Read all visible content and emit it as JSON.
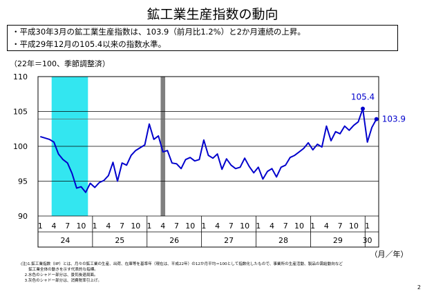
{
  "page": {
    "title": "鉱工業生産指数の動向",
    "bullets": [
      "・平成30年3月の鉱工業生産指数は、103.9（前月比1.2%）と2か月連続の上昇。",
      "・平成29年12月の105.4以来の指数水準。"
    ],
    "unit_note": "（22年＝100、季節調整済）",
    "notes": [
      "(注)1.鉱工業指数（IIP）とは、月々の鉱工業の生産、出荷、在庫等を基準年（現在は、平成22年）の12か月平均＝100として指数化したもので、事業所の生産活動、製品の需給動向など",
      "　　鉱工業全体の動きを示す代表的な指標。",
      "　2.水色のシャドー部分は、景気後退局面。",
      "　3.灰色のシャドー部分は、消費税率引上げ。"
    ],
    "page_number": "2"
  },
  "chart_data": {
    "type": "line",
    "title": "",
    "xlabel": "（月／年）",
    "ylabel": "",
    "ylim": [
      90,
      110
    ],
    "yticks": [
      90,
      95,
      100,
      105,
      110
    ],
    "month_ticks": [
      1,
      4,
      7,
      10
    ],
    "years": [
      "24",
      "25",
      "26",
      "27",
      "28",
      "29",
      "30"
    ],
    "start": "2012-01",
    "series": [
      {
        "name": "",
        "color": "#0000cc",
        "values": [
          101.4,
          101.2,
          101.0,
          100.6,
          98.9,
          98.1,
          97.6,
          96.1,
          94.0,
          94.2,
          93.4,
          94.7,
          94.1,
          94.8,
          95.1,
          95.8,
          97.7,
          95.0,
          97.6,
          97.3,
          98.7,
          99.4,
          99.8,
          100.2,
          103.2,
          101.0,
          101.5,
          99.2,
          99.4,
          97.6,
          97.5,
          96.8,
          98.1,
          98.4,
          97.9,
          98.1,
          100.9,
          98.7,
          98.3,
          98.9,
          96.7,
          98.2,
          97.3,
          96.8,
          97.0,
          98.3,
          97.1,
          96.2,
          97.0,
          95.3,
          96.4,
          96.8,
          95.6,
          97.0,
          97.3,
          98.4,
          98.7,
          99.2,
          99.7,
          100.5,
          99.5,
          100.3,
          99.9,
          102.9,
          100.8,
          102.1,
          101.8,
          102.9,
          102.3,
          103.0,
          103.5,
          105.4,
          100.6,
          102.7,
          103.9
        ]
      }
    ],
    "reference_line": 103.9,
    "shading": [
      {
        "label": "景気後退局面",
        "start": "2012-04",
        "end": "2012-11",
        "color": "#33e6f0"
      },
      {
        "label": "消費税率引上げ",
        "start": "2014-04",
        "end": "2014-04",
        "color": "#808080"
      }
    ],
    "annotations": [
      {
        "text": "105.4",
        "at": "2017-12"
      },
      {
        "text": "103.9",
        "at": "2018-03"
      }
    ]
  }
}
